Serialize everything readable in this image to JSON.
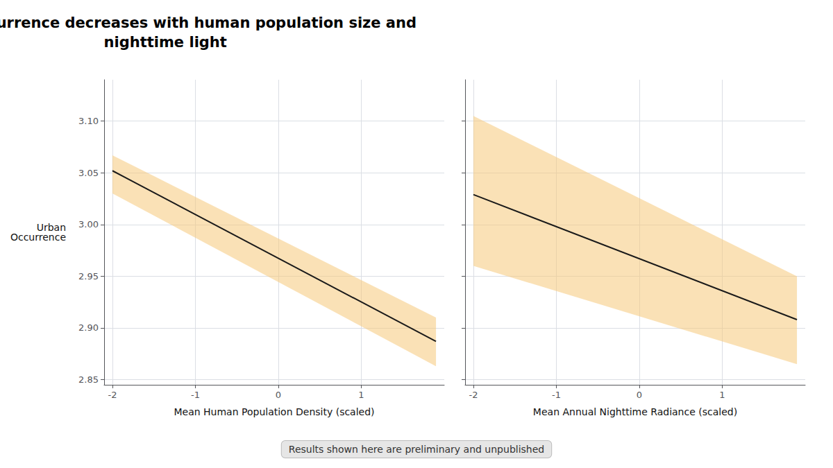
{
  "chart_data": [
    {
      "type": "line",
      "title": "Urban occurrence decreases with human population size and\nnighttime light",
      "annotations": [
        "Results shown here are preliminary and unpublished"
      ],
      "xlabel": "Mean Human Population Density (scaled)",
      "ylabel": "Urban\nOccurrence",
      "x": [
        -2.0,
        1.9
      ],
      "series": [
        {
          "type": "band",
          "color": "#f5c97a",
          "upper": [
            3.067,
            2.91
          ],
          "lower": [
            3.03,
            2.863
          ]
        },
        {
          "type": "line",
          "color": "#1a1a1a",
          "values": [
            3.052,
            2.887
          ]
        }
      ],
      "xlim": [
        -2.1,
        2.0
      ],
      "ylim": [
        2.845,
        3.14
      ],
      "xticks": [
        -2,
        -1,
        0,
        1
      ],
      "yticks": [
        2.85,
        {
          "value": 2.9,
          "label": "2.90"
        },
        2.95,
        {
          "value": 3,
          "label": "3.00"
        },
        3.05,
        {
          "value": 3.1,
          "label": "3.10"
        }
      ],
      "grid": true
    },
    {
      "type": "line",
      "xlabel": "Mean Annual Nighttime Radiance (scaled)",
      "x": [
        -2.0,
        1.9
      ],
      "series": [
        {
          "type": "band",
          "color": "#f5c97a",
          "upper": [
            3.105,
            2.95
          ],
          "lower": [
            2.96,
            2.865
          ]
        },
        {
          "type": "line",
          "color": "#1a1a1a",
          "values": [
            3.029,
            2.908
          ]
        }
      ],
      "xlim": [
        -2.1,
        2.0
      ],
      "ylim": [
        2.845,
        3.14
      ],
      "xticks": [
        -2,
        -1,
        0,
        1
      ],
      "yticks": [
        2.85,
        {
          "value": 2.9,
          "label": "2.90"
        },
        2.95,
        {
          "value": 3,
          "label": "3.00"
        },
        3.05,
        {
          "value": 3.1,
          "label": "3.10"
        }
      ],
      "grid": true,
      "tick_labels": "x"
    }
  ]
}
